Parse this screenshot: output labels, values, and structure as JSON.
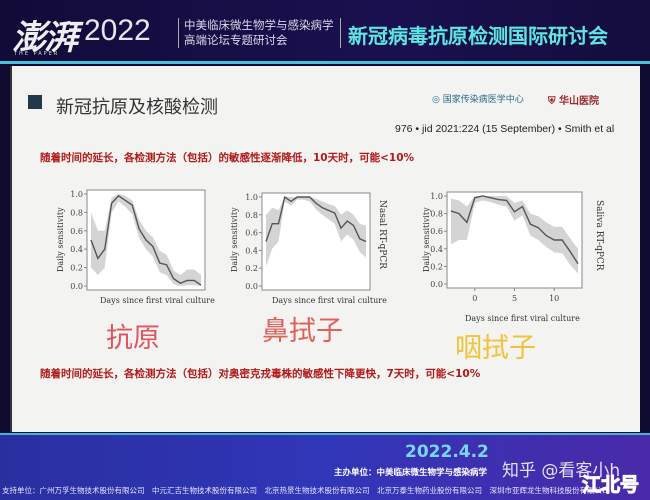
{
  "banner": {
    "logo": "澎湃",
    "logo_sub": "THE PAPER",
    "year": "2022",
    "forum_line1": "中美临床微生物学与感染病学",
    "forum_line2": "高端论坛专题研讨会",
    "conference": "新冠病毒抗原检测国际研讨会"
  },
  "slide": {
    "title": "新冠抗原及核酸检测",
    "logo1": "国家传染病医学中心",
    "logo2": "华山医院",
    "citation": "976 • jid 2021:224 (15 September) • Smith et al",
    "note1": "随着时间的延长，各检测方法（包括）的敏感性逐渐降低，10天时，可能<10%",
    "note2": "随着时间的延长，各检测方法（包括）对奥密克戎毒株的敏感性下降更快，7天时，可能<10%",
    "label_antigen": "抗原",
    "label_nasal": "鼻拭子",
    "label_saliva": "咽拭子"
  },
  "colors": {
    "antigen": "#e2545f",
    "nasal": "#e0605a",
    "saliva": "#f0c338",
    "note": "#b21a1a",
    "accent": "#5fe6e0"
  },
  "chart_data": [
    {
      "type": "line",
      "ylabel": "Daily sensitivity",
      "xlabel": "Days since first viral culture",
      "right_label": "",
      "ylim": [
        0,
        1
      ],
      "yticks": [
        "0.0",
        "0.2",
        "0.4",
        "0.6",
        "0.8",
        "1.0"
      ],
      "xlim": [
        -3,
        13
      ],
      "xticks": [],
      "x": [
        -3,
        -2,
        -1,
        0,
        1,
        2,
        3,
        4,
        5,
        6,
        7,
        8,
        9,
        10,
        11,
        12,
        13
      ],
      "values": [
        0.5,
        0.3,
        0.4,
        0.9,
        0.98,
        0.93,
        0.88,
        0.62,
        0.5,
        0.43,
        0.25,
        0.23,
        0.08,
        0.03,
        0.06,
        0.06,
        0.01
      ],
      "lower": [
        0.2,
        0.12,
        0.2,
        0.8,
        0.92,
        0.86,
        0.78,
        0.52,
        0.4,
        0.32,
        0.15,
        0.12,
        0.02,
        0.0,
        0.01,
        0.01,
        0.0
      ],
      "upper": [
        0.8,
        0.6,
        0.6,
        0.96,
        1.0,
        0.98,
        0.93,
        0.72,
        0.6,
        0.53,
        0.38,
        0.34,
        0.17,
        0.12,
        0.18,
        0.18,
        0.12
      ]
    },
    {
      "type": "line",
      "ylabel": "Daily sensitivity",
      "xlabel": "Days since first viral culture",
      "right_label": "Nasal RT-qPCR",
      "ylim": [
        0,
        1
      ],
      "yticks": [
        "0.0",
        "0.2",
        "0.4",
        "0.6",
        "0.8",
        "1.0"
      ],
      "xlim": [
        -3,
        13
      ],
      "xticks": [],
      "x": [
        -3,
        -2,
        -1,
        0,
        1,
        2,
        3,
        4,
        5,
        6,
        7,
        8,
        9,
        10,
        11,
        12,
        13
      ],
      "values": [
        0.5,
        0.7,
        0.7,
        1.0,
        0.95,
        1.0,
        1.0,
        1.0,
        0.93,
        0.88,
        0.85,
        0.82,
        0.65,
        0.73,
        0.68,
        0.53,
        0.5
      ],
      "lower": [
        0.22,
        0.42,
        0.5,
        0.95,
        0.9,
        0.97,
        0.97,
        0.95,
        0.86,
        0.8,
        0.75,
        0.7,
        0.5,
        0.58,
        0.52,
        0.38,
        0.32
      ],
      "upper": [
        0.8,
        0.88,
        0.85,
        1.0,
        1.0,
        1.0,
        1.0,
        1.0,
        0.98,
        0.95,
        0.92,
        0.9,
        0.8,
        0.85,
        0.8,
        0.7,
        0.68
      ]
    },
    {
      "type": "line",
      "ylabel": "Daily sensitivity",
      "xlabel": "Days since first viral culture",
      "right_label": "Saliva RT-qPCR",
      "ylim": [
        0,
        1
      ],
      "yticks": [
        "0.0",
        "0.2",
        "0.4",
        "0.6",
        "0.8",
        "1.0"
      ],
      "xlim": [
        -3,
        13
      ],
      "xticks": [
        "0",
        "5",
        "10"
      ],
      "x": [
        -3,
        -2,
        -1,
        0,
        1,
        2,
        3,
        4,
        5,
        6,
        7,
        8,
        9,
        10,
        11,
        12,
        13
      ],
      "values": [
        0.83,
        0.8,
        0.7,
        0.98,
        1.0,
        0.98,
        0.96,
        0.95,
        0.82,
        0.88,
        0.68,
        0.64,
        0.55,
        0.5,
        0.5,
        0.37,
        0.23
      ],
      "lower": [
        0.45,
        0.5,
        0.5,
        0.92,
        0.95,
        0.93,
        0.9,
        0.88,
        0.72,
        0.78,
        0.55,
        0.5,
        0.42,
        0.36,
        0.35,
        0.22,
        0.12
      ],
      "upper": [
        0.97,
        0.95,
        0.88,
        1.0,
        1.0,
        1.0,
        1.0,
        1.0,
        0.92,
        0.95,
        0.8,
        0.77,
        0.7,
        0.65,
        0.65,
        0.52,
        0.4
      ]
    }
  ],
  "footer": {
    "date": "2022.4.2",
    "host": "主办单位：中美临床微生物学与感染病学",
    "support": "支持单位：广州万孚生物技术股份有限公司　中元汇吉生物技术股份有限公司　北京热景生物技术股份有限公司　北京万泰生物药业股份有限公司　深圳市亚辉龙生物科技股份有限公司",
    "watermark": "知乎 @看客小h",
    "watermark2": "江北号"
  }
}
